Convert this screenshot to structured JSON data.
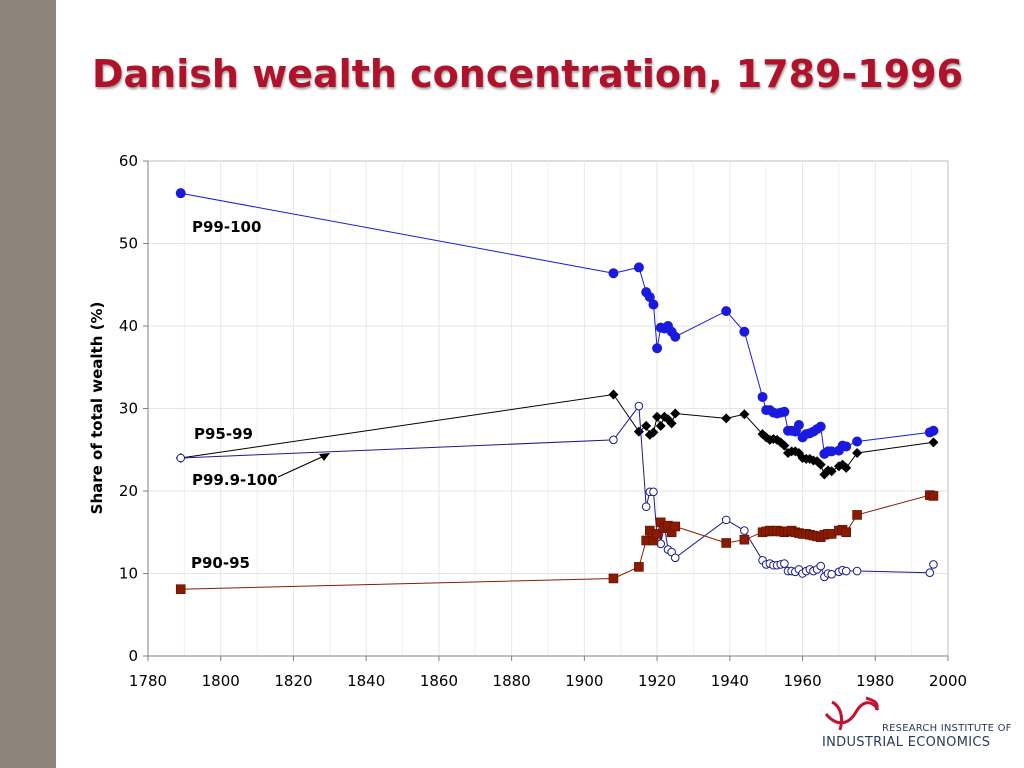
{
  "slide": {
    "title": "Danish wealth concentration, 1789-1996"
  },
  "logo": {
    "line1": "RESEARCH INSTITUTE OF",
    "line2": "INDUSTRIAL ECONOMICS"
  },
  "colors": {
    "title": "#b0122b",
    "p99_100": "#1a1adf",
    "p95_99": "#000000",
    "p99_9_100": "#1a1a8c",
    "p90_95": "#8b1a00",
    "band": "#8d857b"
  },
  "chart_data": {
    "type": "line",
    "ylabel": "Share of total wealth (%)",
    "xlabel": "",
    "xlim": [
      1780,
      2000
    ],
    "ylim": [
      0,
      60
    ],
    "xticks": [
      "1780",
      "1800",
      "1820",
      "1840",
      "1860",
      "1880",
      "1900",
      "1920",
      "1940",
      "1960",
      "1980",
      "2000"
    ],
    "yticks": [
      "0",
      "10",
      "20",
      "30",
      "40",
      "50",
      "60"
    ],
    "grid": true,
    "series": [
      {
        "name": "P99-100",
        "color": "#1a1adf",
        "marker": "circle",
        "points": [
          [
            1789,
            56.1
          ],
          [
            1908,
            46.4
          ],
          [
            1915,
            47.1
          ],
          [
            1917,
            44.1
          ],
          [
            1918,
            43.5
          ],
          [
            1919,
            42.6
          ],
          [
            1920,
            37.3
          ],
          [
            1921,
            39.8
          ],
          [
            1922,
            39.7
          ],
          [
            1923,
            40.0
          ],
          [
            1924,
            39.3
          ],
          [
            1925,
            38.7
          ],
          [
            1939,
            41.8
          ],
          [
            1944,
            39.3
          ],
          [
            1949,
            31.4
          ],
          [
            1950,
            29.8
          ],
          [
            1951,
            29.8
          ],
          [
            1952,
            29.5
          ],
          [
            1953,
            29.4
          ],
          [
            1954,
            29.5
          ],
          [
            1955,
            29.6
          ],
          [
            1956,
            27.3
          ],
          [
            1957,
            27.3
          ],
          [
            1958,
            27.2
          ],
          [
            1959,
            28.0
          ],
          [
            1960,
            26.5
          ],
          [
            1961,
            26.9
          ],
          [
            1962,
            27.0
          ],
          [
            1963,
            27.2
          ],
          [
            1964,
            27.5
          ],
          [
            1965,
            27.8
          ],
          [
            1966,
            24.5
          ],
          [
            1967,
            24.8
          ],
          [
            1968,
            24.8
          ],
          [
            1970,
            24.9
          ],
          [
            1971,
            25.5
          ],
          [
            1972,
            25.4
          ],
          [
            1975,
            26.0
          ],
          [
            1995,
            27.1
          ],
          [
            1996,
            27.3
          ]
        ]
      },
      {
        "name": "P95-99",
        "color": "#000000",
        "marker": "diamond",
        "points": [
          [
            1789,
            24.0
          ],
          [
            1908,
            31.7
          ],
          [
            1915,
            27.2
          ],
          [
            1917,
            27.9
          ],
          [
            1918,
            26.8
          ],
          [
            1919,
            27.1
          ],
          [
            1920,
            29.0
          ],
          [
            1921,
            27.9
          ],
          [
            1922,
            29.0
          ],
          [
            1923,
            28.7
          ],
          [
            1924,
            28.2
          ],
          [
            1925,
            29.4
          ],
          [
            1939,
            28.8
          ],
          [
            1944,
            29.3
          ],
          [
            1949,
            26.9
          ],
          [
            1950,
            26.5
          ],
          [
            1951,
            26.2
          ],
          [
            1952,
            26.3
          ],
          [
            1953,
            26.2
          ],
          [
            1954,
            25.9
          ],
          [
            1955,
            25.5
          ],
          [
            1956,
            24.6
          ],
          [
            1957,
            24.8
          ],
          [
            1958,
            24.8
          ],
          [
            1959,
            24.6
          ],
          [
            1960,
            24.0
          ],
          [
            1961,
            23.9
          ],
          [
            1962,
            23.9
          ],
          [
            1963,
            23.7
          ],
          [
            1964,
            23.6
          ],
          [
            1965,
            23.2
          ],
          [
            1966,
            22.0
          ],
          [
            1967,
            22.5
          ],
          [
            1968,
            22.4
          ],
          [
            1970,
            23.0
          ],
          [
            1971,
            23.2
          ],
          [
            1972,
            22.8
          ],
          [
            1975,
            24.6
          ],
          [
            1996,
            25.9
          ]
        ]
      },
      {
        "name": "P99.9-100",
        "color": "#1a1a8c",
        "marker": "open-circle",
        "points": [
          [
            1789,
            24.0
          ],
          [
            1908,
            26.2
          ],
          [
            1915,
            30.3
          ],
          [
            1917,
            18.1
          ],
          [
            1918,
            19.9
          ],
          [
            1919,
            19.9
          ],
          [
            1920,
            14.4
          ],
          [
            1921,
            13.6
          ],
          [
            1922,
            15.8
          ],
          [
            1923,
            12.9
          ],
          [
            1924,
            12.6
          ],
          [
            1925,
            11.9
          ],
          [
            1939,
            16.5
          ],
          [
            1944,
            15.2
          ],
          [
            1949,
            11.6
          ],
          [
            1950,
            11.1
          ],
          [
            1951,
            11.2
          ],
          [
            1952,
            11.0
          ],
          [
            1953,
            11.0
          ],
          [
            1954,
            11.1
          ],
          [
            1955,
            11.2
          ],
          [
            1956,
            10.3
          ],
          [
            1957,
            10.3
          ],
          [
            1958,
            10.2
          ],
          [
            1959,
            10.5
          ],
          [
            1960,
            10.0
          ],
          [
            1961,
            10.3
          ],
          [
            1962,
            10.5
          ],
          [
            1963,
            10.3
          ],
          [
            1964,
            10.5
          ],
          [
            1965,
            10.9
          ],
          [
            1966,
            9.6
          ],
          [
            1967,
            10.0
          ],
          [
            1968,
            9.9
          ],
          [
            1970,
            10.2
          ],
          [
            1971,
            10.4
          ],
          [
            1972,
            10.3
          ],
          [
            1975,
            10.3
          ],
          [
            1995,
            10.1
          ],
          [
            1996,
            11.1
          ]
        ]
      },
      {
        "name": "P90-95",
        "color": "#8b1a00",
        "marker": "square",
        "points": [
          [
            1789,
            8.1
          ],
          [
            1908,
            9.4
          ],
          [
            1915,
            10.8
          ],
          [
            1917,
            14.0
          ],
          [
            1918,
            15.2
          ],
          [
            1919,
            14.0
          ],
          [
            1920,
            14.8
          ],
          [
            1921,
            16.2
          ],
          [
            1922,
            15.5
          ],
          [
            1923,
            15.8
          ],
          [
            1924,
            15.0
          ],
          [
            1925,
            15.7
          ],
          [
            1939,
            13.7
          ],
          [
            1944,
            14.1
          ],
          [
            1949,
            15.0
          ],
          [
            1950,
            15.1
          ],
          [
            1951,
            15.2
          ],
          [
            1952,
            15.1
          ],
          [
            1953,
            15.2
          ],
          [
            1954,
            15.1
          ],
          [
            1955,
            15.0
          ],
          [
            1956,
            15.1
          ],
          [
            1957,
            15.2
          ],
          [
            1958,
            15.0
          ],
          [
            1959,
            14.9
          ],
          [
            1960,
            14.8
          ],
          [
            1961,
            14.8
          ],
          [
            1962,
            14.7
          ],
          [
            1963,
            14.6
          ],
          [
            1964,
            14.5
          ],
          [
            1965,
            14.4
          ],
          [
            1966,
            14.7
          ],
          [
            1967,
            14.8
          ],
          [
            1968,
            14.8
          ],
          [
            1970,
            15.2
          ],
          [
            1971,
            15.3
          ],
          [
            1972,
            15.0
          ],
          [
            1975,
            17.1
          ],
          [
            1995,
            19.5
          ],
          [
            1996,
            19.4
          ]
        ]
      }
    ],
    "annotations": [
      {
        "text": "P99-100"
      },
      {
        "text": "P95-99"
      },
      {
        "text": "P99.9-100"
      },
      {
        "text": "P90-95"
      }
    ]
  }
}
